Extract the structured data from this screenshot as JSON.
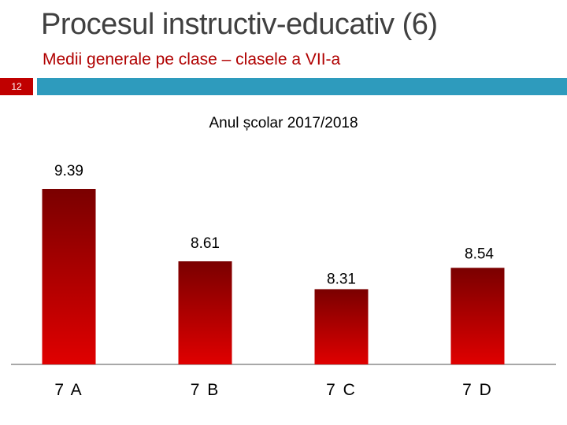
{
  "slide": {
    "title": "Procesul instructiv-educativ (6)",
    "subtitle": "Medii generale pe clase – clasele a VII-a",
    "page_number": "12",
    "accent_color": "#2e9bbd",
    "badge_color": "#c00000"
  },
  "chart_data": {
    "type": "bar",
    "title": "Anul școlar 2017/2018",
    "categories": [
      "7 A",
      "7 B",
      "7 C",
      "7 D"
    ],
    "values": [
      9.39,
      8.61,
      8.31,
      8.54
    ],
    "data_labels": [
      "9.39",
      "8.61",
      "8.31",
      "8.54"
    ],
    "ylim": [
      7.5,
      9.5
    ],
    "grid": false,
    "bar_color_top": "#7a0000",
    "bar_color_bottom": "#e00000"
  }
}
